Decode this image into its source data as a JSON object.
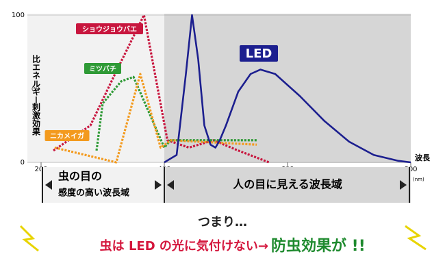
{
  "chart_data": {
    "type": "line",
    "x_label": "波長",
    "x_unit": "(nm)",
    "y_label": "比エネルギー",
    "y_unit": "(%)",
    "y_label2": "刺激効果",
    "xlim": [
      200,
      800
    ],
    "xticks": [
      200,
      400,
      600,
      800
    ],
    "ylim": [
      0,
      100
    ],
    "yticks": [
      0,
      100
    ],
    "series": [
      {
        "name": "ショウジョウバエ",
        "color": "#c8163e",
        "dashed": true,
        "x": [
          220,
          280,
          320,
          367,
          405,
          440,
          480,
          520,
          570
        ],
        "values": [
          8,
          25,
          60,
          100,
          15,
          10,
          15,
          8,
          0
        ]
      },
      {
        "name": "ミツバチ",
        "color": "#2f9a36",
        "dashed": true,
        "x": [
          290,
          300,
          330,
          350,
          400,
          410,
          550
        ],
        "values": [
          8,
          40,
          55,
          58,
          10,
          15,
          15
        ]
      },
      {
        "name": "ニカメイガ",
        "color": "#f39a1e",
        "dashed": true,
        "x": [
          222,
          322,
          361,
          394,
          411,
          550
        ],
        "values": [
          10,
          0,
          60,
          10,
          15,
          12
        ]
      },
      {
        "name": "LED",
        "color": "#1c1f8f",
        "dashed": false,
        "x": [
          400,
          420,
          435,
          445,
          455,
          465,
          475,
          483,
          490,
          500,
          520,
          540,
          556,
          580,
          620,
          660,
          700,
          740,
          780,
          800
        ],
        "values": [
          0,
          5,
          60,
          100,
          70,
          25,
          12,
          10,
          15,
          25,
          48,
          60,
          63,
          60,
          45,
          28,
          14,
          5,
          1,
          0
        ]
      }
    ]
  },
  "bands": [
    {
      "line1": "虫の目の",
      "line2": "感度の高い波長域"
    },
    {
      "line1": "人の目に見える波長域"
    }
  ],
  "caption": {
    "lead": "つまり…",
    "line": "虫は LED の光に気付けない→",
    "emphasis": "防虫効果が !!"
  }
}
